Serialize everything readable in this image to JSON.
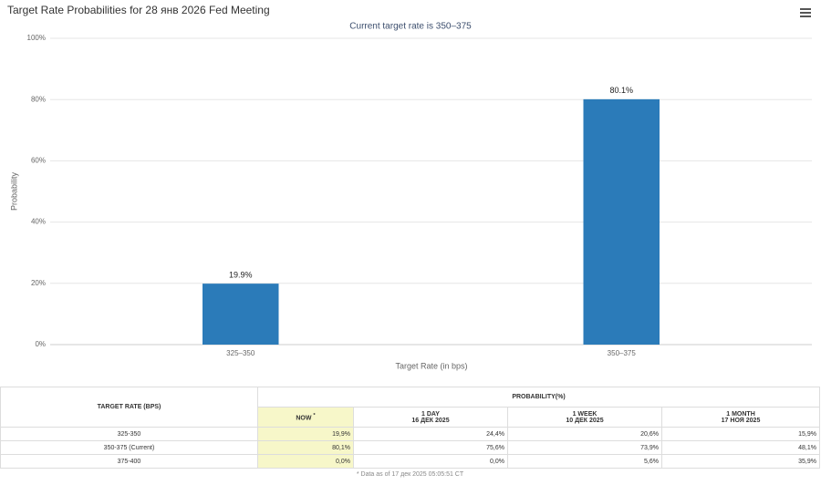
{
  "header": {
    "title": "Target Rate Probabilities for 28 янв 2026 Fed Meeting"
  },
  "chart_data": {
    "type": "bar",
    "subtitle": "Current target rate is 350–375",
    "x_label": "Target Rate (in bps)",
    "y_label": "Probability",
    "categories": [
      "325–350",
      "350–375"
    ],
    "values": [
      19.9,
      80.1
    ],
    "value_labels": [
      "19.9%",
      "80.1%"
    ],
    "color": "#2b7bb9",
    "ylim": [
      0,
      100
    ],
    "yticks": [
      {
        "value": 0,
        "label": "0%"
      },
      {
        "value": 20,
        "label": "20%"
      },
      {
        "value": 40,
        "label": "40%"
      },
      {
        "value": 60,
        "label": "60%"
      },
      {
        "value": 80,
        "label": "80%"
      },
      {
        "value": 100,
        "label": "100%"
      }
    ],
    "grid": true
  },
  "table": {
    "row_header": "TARGET RATE (BPS)",
    "group_header": "PROBABILITY(%)",
    "columns": [
      {
        "label": "NOW",
        "note": "*"
      },
      {
        "label": "1 DAY",
        "date": "16 ДЕК 2025"
      },
      {
        "label": "1 WEEK",
        "date": "10 ДЕК 2025"
      },
      {
        "label": "1 MONTH",
        "date": "17 НОЯ 2025"
      }
    ],
    "rows": [
      [
        "325-350",
        "19,9%",
        "24,4%",
        "20,6%",
        "15,9%"
      ],
      [
        "350-375 (Current)",
        "80,1%",
        "75,6%",
        "73,9%",
        "48,1%"
      ],
      [
        "375-400",
        "0,0%",
        "0,0%",
        "5,6%",
        "35,9%"
      ]
    ],
    "footnote": "* Data as of 17 дек 2025 05:05:51 CT"
  }
}
